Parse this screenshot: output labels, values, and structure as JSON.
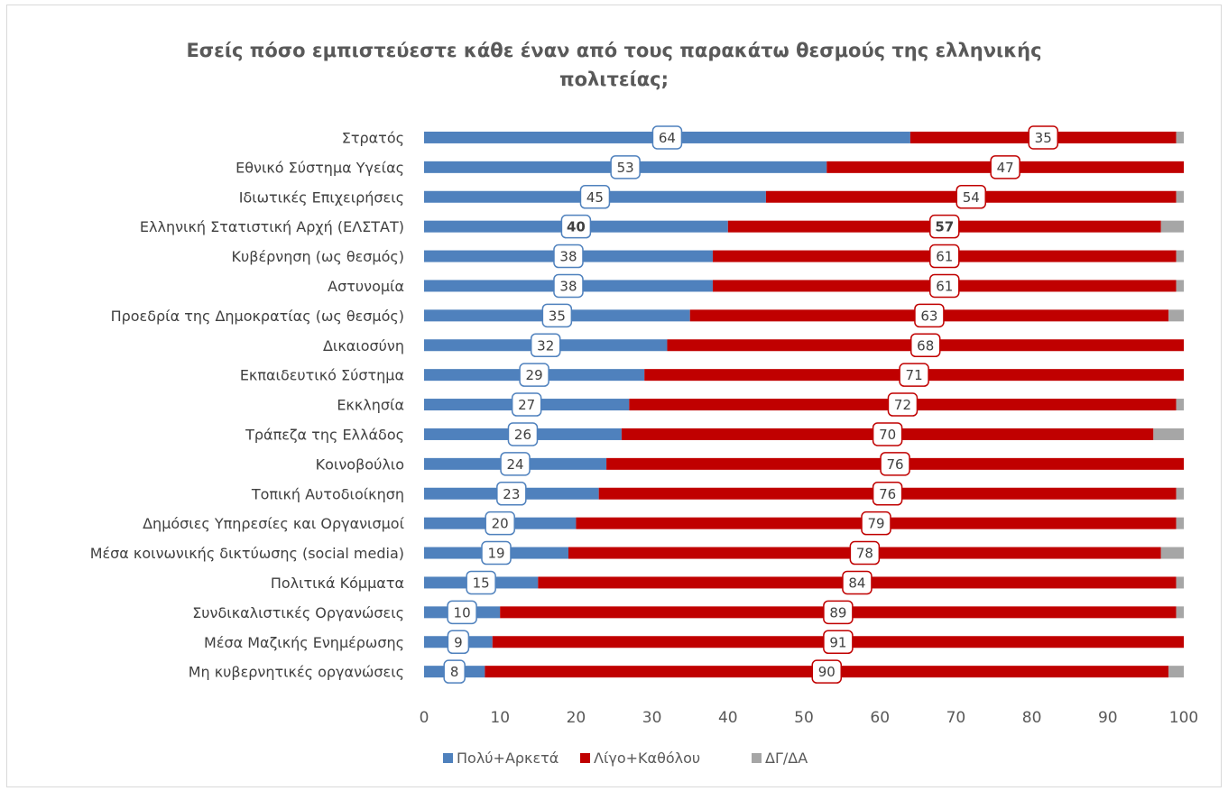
{
  "chart_data": {
    "type": "bar",
    "orientation": "horizontal",
    "stacked": true,
    "title": "Εσείς πόσο εμπιστεύεστε κάθε έναν από τους παρακάτω θεσμούς της ελληνικής πολιτείας;",
    "title_lines": [
      "Εσείς πόσο εμπιστεύεστε κάθε έναν από τους παρακάτω θεσμούς της ελληνικής",
      "πολιτείας;"
    ],
    "xlim": [
      0,
      100
    ],
    "xticks": [
      0,
      10,
      20,
      30,
      40,
      50,
      60,
      70,
      80,
      90,
      100
    ],
    "legend_position": "bottom",
    "grid": false,
    "categories": [
      "Στρατός",
      "Εθνικό Σύστημα Υγείας",
      "Ιδιωτικές Επιχειρήσεις",
      "Ελληνική Στατιστική Αρχή (ΕΛΣΤΑΤ)",
      "Κυβέρνηση (ως θεσμός)",
      "Αστυνομία",
      "Προεδρία της Δημοκρατίας (ως θεσμός)",
      "Δικαιοσύνη",
      "Εκπαιδευτικό Σύστημα",
      "Εκκλησία",
      "Τράπεζα της Ελλάδος",
      "Κοινοβούλιο",
      "Τοπική Αυτοδιοίκηση",
      "Δημόσιες Υπηρεσίες και Οργανισμοί",
      "Μέσα κοινωνικής δικτύωσης (social media)",
      "Πολιτικά Κόμματα",
      "Συνδικαλιστικές Οργανώσεις",
      "Μέσα Μαζικής Ενημέρωσης",
      "Μη κυβερνητικές οργανώσεις"
    ],
    "bold_category_index": 3,
    "series": [
      {
        "name": "Πολύ+Αρκετά",
        "color": "#4f81bd",
        "labeled": true,
        "values": [
          64,
          53,
          45,
          40,
          38,
          38,
          35,
          32,
          29,
          27,
          26,
          24,
          23,
          20,
          19,
          15,
          10,
          9,
          8
        ]
      },
      {
        "name": "Λίγο+Καθόλου",
        "color": "#c00000",
        "labeled": true,
        "values": [
          35,
          47,
          54,
          57,
          61,
          61,
          63,
          68,
          71,
          72,
          70,
          76,
          76,
          79,
          78,
          84,
          89,
          91,
          90
        ]
      },
      {
        "name": "ΔΓ/ΔΑ",
        "color": "#a6a6a6",
        "labeled": false,
        "values": [
          1,
          0,
          1,
          3,
          1,
          1,
          2,
          0,
          0,
          1,
          4,
          0,
          1,
          1,
          3,
          1,
          1,
          0,
          2
        ]
      }
    ]
  }
}
